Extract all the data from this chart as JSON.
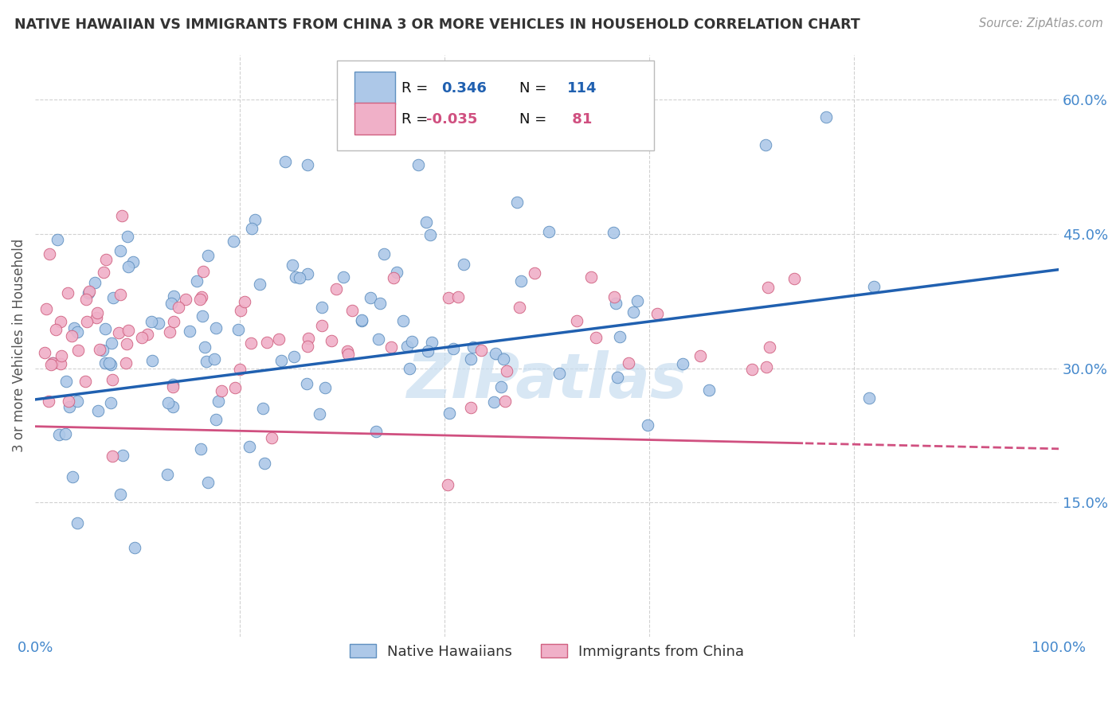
{
  "title": "NATIVE HAWAIIAN VS IMMIGRANTS FROM CHINA 3 OR MORE VEHICLES IN HOUSEHOLD CORRELATION CHART",
  "source": "Source: ZipAtlas.com",
  "ylabel": "3 or more Vehicles in Household",
  "y_tick_values": [
    0.15,
    0.3,
    0.45,
    0.6
  ],
  "y_tick_labels": [
    "15.0%",
    "30.0%",
    "45.0%",
    "60.0%"
  ],
  "x_min": 0.0,
  "x_max": 1.0,
  "y_min": 0.0,
  "y_max": 0.65,
  "series1_label": "Native Hawaiians",
  "series1_color": "#adc8e8",
  "series1_edge_color": "#6090c0",
  "series1_line_color": "#2060b0",
  "series1_R": 0.346,
  "series1_N": 114,
  "series2_label": "Immigrants from China",
  "series2_color": "#f0b0c8",
  "series2_edge_color": "#d06080",
  "series2_line_color": "#d05080",
  "series2_R": -0.035,
  "series2_N": 81,
  "watermark": "ZIPatlas",
  "watermark_color": "#c8ddf0",
  "background_color": "#ffffff",
  "grid_color": "#cccccc",
  "title_color": "#333333",
  "right_axis_color": "#4488cc",
  "seed": 99
}
